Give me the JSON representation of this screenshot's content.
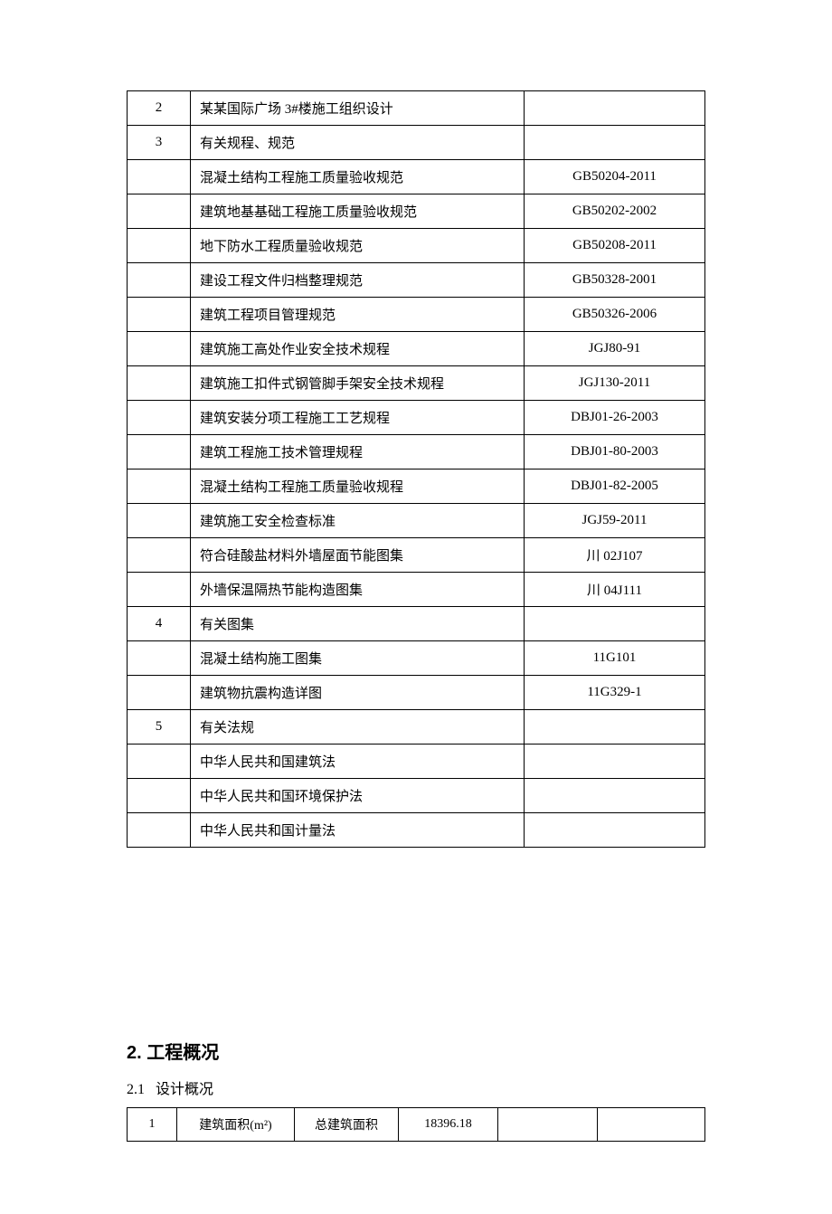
{
  "table1": {
    "rows": [
      {
        "index": "2",
        "name": "某某国际广场 3#楼施工组织设计",
        "code": ""
      },
      {
        "index": "3",
        "name": "有关规程、规范",
        "code": ""
      },
      {
        "index": "",
        "name": "混凝土结构工程施工质量验收规范",
        "code": "GB50204-2011"
      },
      {
        "index": "",
        "name": "建筑地基基础工程施工质量验收规范",
        "code": "GB50202-2002"
      },
      {
        "index": "",
        "name": "地下防水工程质量验收规范",
        "code": "GB50208-2011"
      },
      {
        "index": "",
        "name": "建设工程文件归档整理规范",
        "code": "GB50328-2001"
      },
      {
        "index": "",
        "name": "建筑工程项目管理规范",
        "code": "GB50326-2006"
      },
      {
        "index": "",
        "name": "建筑施工高处作业安全技术规程",
        "code": "JGJ80-91"
      },
      {
        "index": "",
        "name": "建筑施工扣件式钢管脚手架安全技术规程",
        "code": "JGJ130-2011"
      },
      {
        "index": "",
        "name": "建筑安装分项工程施工工艺规程",
        "code": "DBJ01-26-2003"
      },
      {
        "index": "",
        "name": "建筑工程施工技术管理规程",
        "code": "DBJ01-80-2003"
      },
      {
        "index": "",
        "name": "混凝土结构工程施工质量验收规程",
        "code": "DBJ01-82-2005"
      },
      {
        "index": "",
        "name": "建筑施工安全检查标准",
        "code": "JGJ59-2011"
      },
      {
        "index": "",
        "name": "符合硅酸盐材料外墙屋面节能图集",
        "code": "川 02J107"
      },
      {
        "index": "",
        "name": "外墙保温隔热节能构造图集",
        "code": "川 04J111"
      },
      {
        "index": "4",
        "name": "有关图集",
        "code": ""
      },
      {
        "index": "",
        "name": "混凝土结构施工图集",
        "code": "11G101"
      },
      {
        "index": "",
        "name": "建筑物抗震构造详图",
        "code": "11G329-1"
      },
      {
        "index": "5",
        "name": "有关法规",
        "code": ""
      },
      {
        "index": "",
        "name": "中华人民共和国建筑法",
        "code": ""
      },
      {
        "index": "",
        "name": "中华人民共和国环境保护法",
        "code": ""
      },
      {
        "index": "",
        "name": "中华人民共和国计量法",
        "code": ""
      }
    ]
  },
  "section2": {
    "heading": "2. 工程概况",
    "sub_num": "2.1",
    "sub_text": "设计概况"
  },
  "table2": {
    "row": {
      "c1": "1",
      "c2": "建筑面积(m²)",
      "c3": "总建筑面积",
      "c4": "18396.18",
      "c5": "",
      "c6": ""
    }
  }
}
